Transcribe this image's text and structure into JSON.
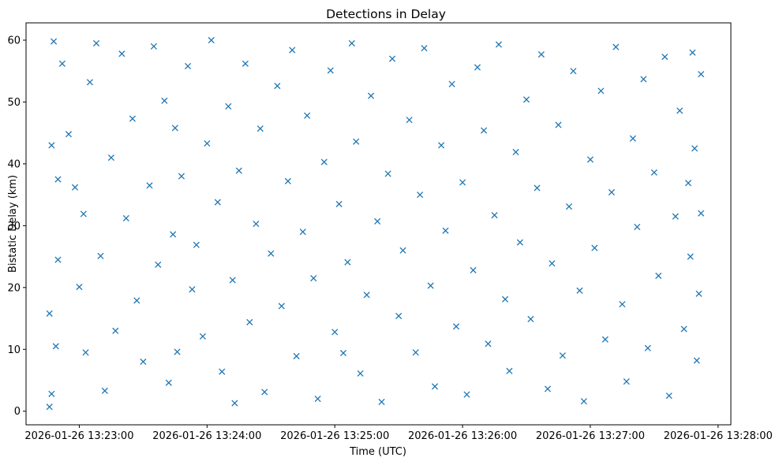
{
  "chart_data": {
    "type": "scatter",
    "title": "Detections in Delay",
    "xlabel": "Time (UTC)",
    "ylabel": "Bistatic Delay (km)",
    "x_ticks": [
      "2026-01-26 13:23:00",
      "2026-01-26 13:24:00",
      "2026-01-26 13:25:00",
      "2026-01-26 13:26:00",
      "2026-01-26 13:27:00",
      "2026-01-26 13:28:00"
    ],
    "y_ticks": [
      0,
      10,
      20,
      30,
      40,
      50,
      60
    ],
    "xlim": [
      "2026-01-26 13:22:35",
      "2026-01-26 13:28:06"
    ],
    "ylim": [
      -2.2,
      62.8
    ],
    "grid": false,
    "legend": "none",
    "marker": "x",
    "series": [
      {
        "color": "#1f77b4",
        "points": [
          [
            "2026-01-26 13:22:48",
            59.8
          ],
          [
            "2026-01-26 13:22:52",
            56.2
          ],
          [
            "2026-01-26 13:22:47",
            43.0
          ],
          [
            "2026-01-26 13:22:50",
            37.5
          ],
          [
            "2026-01-26 13:22:46",
            15.8
          ],
          [
            "2026-01-26 13:22:49",
            10.5
          ],
          [
            "2026-01-26 13:22:47",
            2.8
          ],
          [
            "2026-01-26 13:22:46",
            0.7
          ],
          [
            "2026-01-26 13:22:50",
            24.5
          ],
          [
            "2026-01-26 13:22:55",
            44.8
          ],
          [
            "2026-01-26 13:22:58",
            36.2
          ],
          [
            "2026-01-26 13:23:02",
            31.9
          ],
          [
            "2026-01-26 13:23:00",
            20.1
          ],
          [
            "2026-01-26 13:23:03",
            9.5
          ],
          [
            "2026-01-26 13:23:05",
            53.2
          ],
          [
            "2026-01-26 13:23:08",
            59.5
          ],
          [
            "2026-01-26 13:23:10",
            25.1
          ],
          [
            "2026-01-26 13:23:12",
            3.3
          ],
          [
            "2026-01-26 13:23:15",
            41.0
          ],
          [
            "2026-01-26 13:23:17",
            13.0
          ],
          [
            "2026-01-26 13:23:20",
            57.8
          ],
          [
            "2026-01-26 13:23:22",
            31.2
          ],
          [
            "2026-01-26 13:23:25",
            47.3
          ],
          [
            "2026-01-26 13:23:27",
            17.9
          ],
          [
            "2026-01-26 13:23:30",
            8.0
          ],
          [
            "2026-01-26 13:23:33",
            36.5
          ],
          [
            "2026-01-26 13:23:35",
            59.0
          ],
          [
            "2026-01-26 13:23:37",
            23.7
          ],
          [
            "2026-01-26 13:23:40",
            50.2
          ],
          [
            "2026-01-26 13:23:42",
            4.6
          ],
          [
            "2026-01-26 13:23:44",
            28.6
          ],
          [
            "2026-01-26 13:23:45",
            45.8
          ],
          [
            "2026-01-26 13:23:46",
            9.6
          ],
          [
            "2026-01-26 13:23:48",
            38.0
          ],
          [
            "2026-01-26 13:23:51",
            55.8
          ],
          [
            "2026-01-26 13:23:53",
            19.7
          ],
          [
            "2026-01-26 13:23:55",
            26.9
          ],
          [
            "2026-01-26 13:23:58",
            12.1
          ],
          [
            "2026-01-26 13:24:00",
            43.3
          ],
          [
            "2026-01-26 13:24:02",
            60.0
          ],
          [
            "2026-01-26 13:24:05",
            33.8
          ],
          [
            "2026-01-26 13:24:07",
            6.4
          ],
          [
            "2026-01-26 13:24:10",
            49.3
          ],
          [
            "2026-01-26 13:24:12",
            21.2
          ],
          [
            "2026-01-26 13:24:13",
            1.3
          ],
          [
            "2026-01-26 13:24:15",
            38.9
          ],
          [
            "2026-01-26 13:24:18",
            56.2
          ],
          [
            "2026-01-26 13:24:20",
            14.4
          ],
          [
            "2026-01-26 13:24:23",
            30.3
          ],
          [
            "2026-01-26 13:24:25",
            45.7
          ],
          [
            "2026-01-26 13:24:27",
            3.1
          ],
          [
            "2026-01-26 13:24:30",
            25.5
          ],
          [
            "2026-01-26 13:24:33",
            52.6
          ],
          [
            "2026-01-26 13:24:35",
            17.0
          ],
          [
            "2026-01-26 13:24:38",
            37.2
          ],
          [
            "2026-01-26 13:24:40",
            58.4
          ],
          [
            "2026-01-26 13:24:42",
            8.9
          ],
          [
            "2026-01-26 13:24:45",
            29.0
          ],
          [
            "2026-01-26 13:24:47",
            47.8
          ],
          [
            "2026-01-26 13:24:50",
            21.5
          ],
          [
            "2026-01-26 13:24:52",
            2.0
          ],
          [
            "2026-01-26 13:24:55",
            40.3
          ],
          [
            "2026-01-26 13:24:58",
            55.1
          ],
          [
            "2026-01-26 13:25:00",
            12.8
          ],
          [
            "2026-01-26 13:25:02",
            33.5
          ],
          [
            "2026-01-26 13:25:04",
            9.4
          ],
          [
            "2026-01-26 13:25:06",
            24.1
          ],
          [
            "2026-01-26 13:25:08",
            59.5
          ],
          [
            "2026-01-26 13:25:10",
            43.6
          ],
          [
            "2026-01-26 13:25:12",
            6.1
          ],
          [
            "2026-01-26 13:25:15",
            18.8
          ],
          [
            "2026-01-26 13:25:17",
            51.0
          ],
          [
            "2026-01-26 13:25:20",
            30.7
          ],
          [
            "2026-01-26 13:25:22",
            1.5
          ],
          [
            "2026-01-26 13:25:25",
            38.4
          ],
          [
            "2026-01-26 13:25:27",
            57.0
          ],
          [
            "2026-01-26 13:25:30",
            15.4
          ],
          [
            "2026-01-26 13:25:32",
            26.0
          ],
          [
            "2026-01-26 13:25:35",
            47.1
          ],
          [
            "2026-01-26 13:25:38",
            9.5
          ],
          [
            "2026-01-26 13:25:40",
            35.0
          ],
          [
            "2026-01-26 13:25:42",
            58.7
          ],
          [
            "2026-01-26 13:25:45",
            20.3
          ],
          [
            "2026-01-26 13:25:47",
            4.0
          ],
          [
            "2026-01-26 13:25:50",
            43.0
          ],
          [
            "2026-01-26 13:25:52",
            29.2
          ],
          [
            "2026-01-26 13:25:55",
            52.9
          ],
          [
            "2026-01-26 13:25:57",
            13.7
          ],
          [
            "2026-01-26 13:26:00",
            37.0
          ],
          [
            "2026-01-26 13:26:02",
            2.7
          ],
          [
            "2026-01-26 13:26:05",
            22.8
          ],
          [
            "2026-01-26 13:26:07",
            55.6
          ],
          [
            "2026-01-26 13:26:10",
            45.4
          ],
          [
            "2026-01-26 13:26:12",
            10.9
          ],
          [
            "2026-01-26 13:26:15",
            31.7
          ],
          [
            "2026-01-26 13:26:17",
            59.3
          ],
          [
            "2026-01-26 13:26:20",
            18.1
          ],
          [
            "2026-01-26 13:26:22",
            6.5
          ],
          [
            "2026-01-26 13:26:25",
            41.9
          ],
          [
            "2026-01-26 13:26:27",
            27.3
          ],
          [
            "2026-01-26 13:26:30",
            50.4
          ],
          [
            "2026-01-26 13:26:32",
            14.9
          ],
          [
            "2026-01-26 13:26:35",
            36.1
          ],
          [
            "2026-01-26 13:26:37",
            57.7
          ],
          [
            "2026-01-26 13:26:40",
            3.6
          ],
          [
            "2026-01-26 13:26:42",
            23.9
          ],
          [
            "2026-01-26 13:26:45",
            46.3
          ],
          [
            "2026-01-26 13:26:47",
            9.0
          ],
          [
            "2026-01-26 13:26:50",
            33.1
          ],
          [
            "2026-01-26 13:26:52",
            55.0
          ],
          [
            "2026-01-26 13:26:55",
            19.5
          ],
          [
            "2026-01-26 13:26:57",
            1.6
          ],
          [
            "2026-01-26 13:27:00",
            40.7
          ],
          [
            "2026-01-26 13:27:02",
            26.4
          ],
          [
            "2026-01-26 13:27:05",
            51.8
          ],
          [
            "2026-01-26 13:27:07",
            11.6
          ],
          [
            "2026-01-26 13:27:10",
            35.4
          ],
          [
            "2026-01-26 13:27:12",
            58.9
          ],
          [
            "2026-01-26 13:27:15",
            17.3
          ],
          [
            "2026-01-26 13:27:17",
            4.8
          ],
          [
            "2026-01-26 13:27:20",
            44.1
          ],
          [
            "2026-01-26 13:27:22",
            29.8
          ],
          [
            "2026-01-26 13:27:25",
            53.7
          ],
          [
            "2026-01-26 13:27:27",
            10.2
          ],
          [
            "2026-01-26 13:27:30",
            38.6
          ],
          [
            "2026-01-26 13:27:32",
            21.9
          ],
          [
            "2026-01-26 13:27:35",
            57.3
          ],
          [
            "2026-01-26 13:27:37",
            2.5
          ],
          [
            "2026-01-26 13:27:40",
            31.5
          ],
          [
            "2026-01-26 13:27:42",
            48.6
          ],
          [
            "2026-01-26 13:27:44",
            13.3
          ],
          [
            "2026-01-26 13:27:46",
            36.9
          ],
          [
            "2026-01-26 13:27:47",
            25.0
          ],
          [
            "2026-01-26 13:27:48",
            58.0
          ],
          [
            "2026-01-26 13:27:49",
            42.5
          ],
          [
            "2026-01-26 13:27:50",
            8.2
          ],
          [
            "2026-01-26 13:27:51",
            19.0
          ],
          [
            "2026-01-26 13:27:52",
            54.5
          ],
          [
            "2026-01-26 13:27:52",
            32.0
          ]
        ]
      }
    ]
  }
}
